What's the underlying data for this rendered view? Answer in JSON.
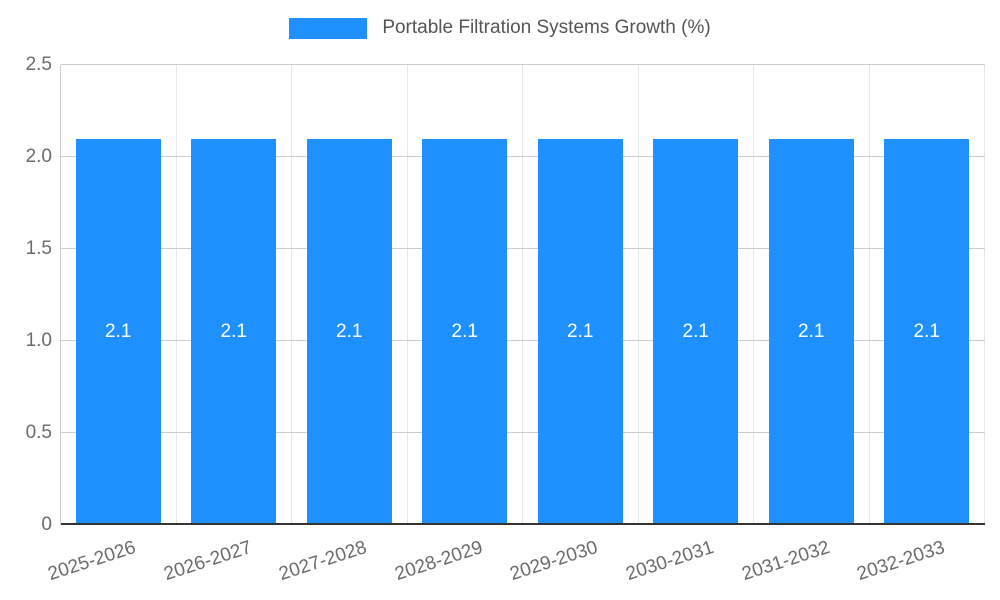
{
  "chart_data": {
    "type": "bar",
    "title": "Portable Filtration Systems Growth (%)",
    "categories": [
      "2025-2026",
      "2026-2027",
      "2027-2028",
      "2028-2029",
      "2029-2030",
      "2030-2031",
      "2031-2032",
      "2032-2033"
    ],
    "values": [
      2.1,
      2.1,
      2.1,
      2.1,
      2.1,
      2.1,
      2.1,
      2.1
    ],
    "bar_labels": [
      "2.1",
      "2.1",
      "2.1",
      "2.1",
      "2.1",
      "2.1",
      "2.1",
      "2.1"
    ],
    "xlabel": "",
    "ylabel": "",
    "ylim": [
      0,
      2.5
    ],
    "yticks": [
      0,
      0.5,
      1.0,
      1.5,
      2.0,
      2.5
    ],
    "ytick_labels": [
      "0",
      "0.5",
      "1.0",
      "1.5",
      "2.0",
      "2.5"
    ],
    "grid": true,
    "legend_position": "top",
    "colors": {
      "bar": "#1E90FF",
      "grid": "#cccccc",
      "vgrid": "#e6e6e6",
      "axis_line": "#333333",
      "tick_text": "#6b6b6b",
      "title_text": "#555555",
      "bar_label_text": "#ffffff",
      "background": "#ffffff"
    }
  }
}
